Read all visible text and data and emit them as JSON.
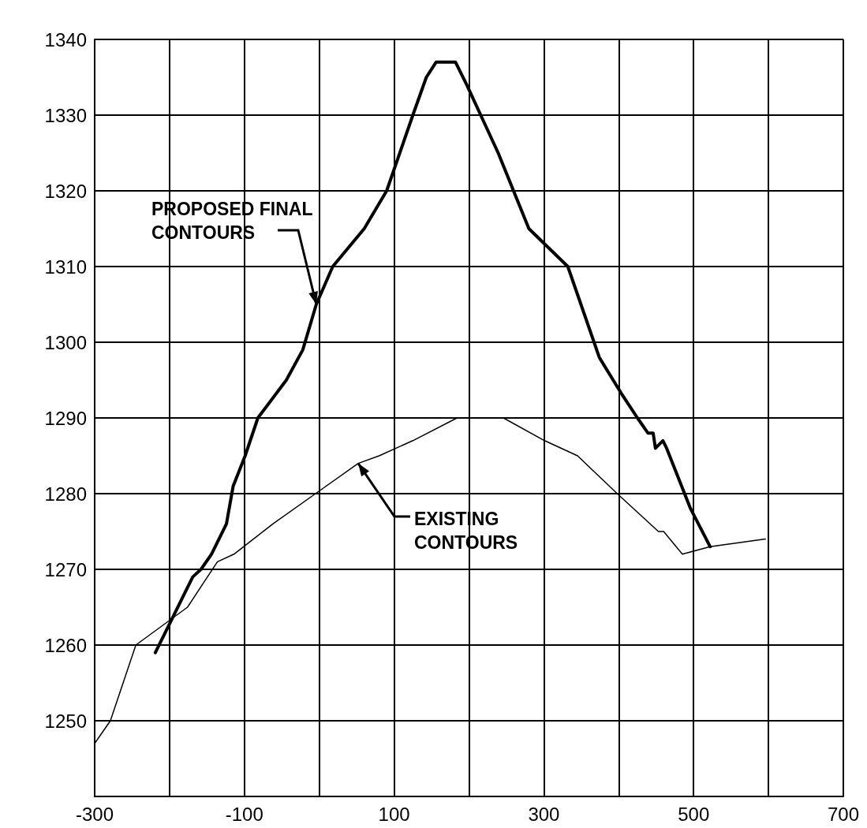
{
  "chart_data": {
    "type": "line",
    "series": [
      {
        "color": "#000000",
        "x": [
          -219,
          -184,
          -169,
          -158,
          -144,
          -134,
          -124,
          -115,
          -99,
          -82,
          -44,
          -22,
          -4,
          18,
          60,
          90,
          125,
          143,
          156,
          182,
          197,
          239,
          280,
          332,
          374,
          405,
          425,
          439,
          446,
          449,
          459,
          464,
          496,
          522
        ],
        "values": [
          1259,
          1266,
          1269,
          1270,
          1272,
          1274,
          1276,
          1281,
          1285,
          1290,
          1295,
          1299,
          1305,
          1310,
          1315,
          1320,
          1330,
          1335,
          1337,
          1337,
          1334,
          1325,
          1315,
          1310,
          1298,
          1293,
          1290,
          1288,
          1288,
          1286,
          1287,
          1286,
          1278,
          1273
        ]
      },
      {
        "color": "#000000",
        "x": [
          -300,
          -279,
          -245,
          -176,
          -136,
          -114,
          -62,
          -5,
          52,
          80,
          125,
          184,
          246,
          301,
          345,
          398,
          453,
          460,
          485,
          522,
          596
        ],
        "values": [
          1247,
          1250,
          1260,
          1265,
          1271,
          1272,
          1276,
          1280,
          1284,
          1285,
          1287,
          1290,
          1290,
          1287,
          1285,
          1280,
          1275,
          1275,
          1272,
          1273,
          1274
        ]
      }
    ],
    "annotations": [
      {
        "text": "PROPOSED FINAL\nCONTOURS",
        "x": -4,
        "y": 1305
      },
      {
        "text": "EXISTING\nCONTOURS",
        "x": 52,
        "y": 1284
      }
    ],
    "xlim": [
      -300,
      700
    ],
    "xticks": [
      -300,
      {
        "value": -200,
        "label": null
      },
      -100,
      {
        "value": 0,
        "label": null
      },
      100,
      {
        "value": 200,
        "label": null
      },
      300,
      {
        "value": 400,
        "label": null
      },
      500,
      {
        "value": 600,
        "label": null
      },
      700
    ],
    "ylim": [
      1240,
      1340
    ],
    "yticks": [
      {
        "value": 1240,
        "label": null
      },
      1250,
      1260,
      1270,
      1280,
      1290,
      1300,
      1310,
      1320,
      1330,
      1340
    ],
    "grid": true,
    "marker": "none",
    "line_style": "solid"
  }
}
